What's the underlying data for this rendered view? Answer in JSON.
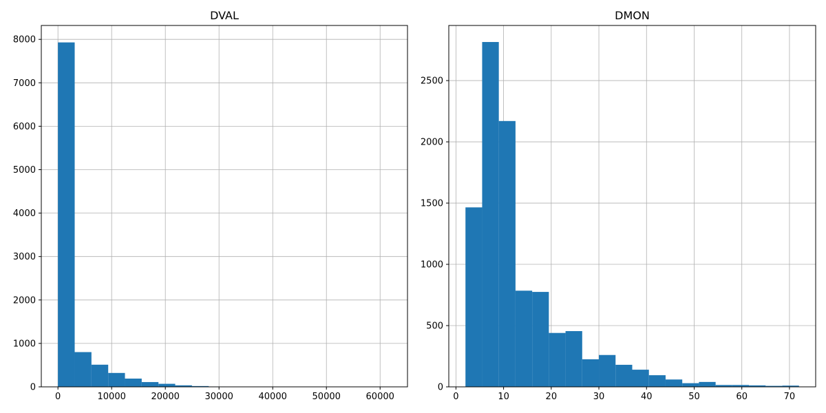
{
  "chart_data": [
    {
      "type": "bar",
      "title": "DVAL",
      "xlabel": "",
      "ylabel": "",
      "grid": true,
      "xlim": [
        -3100,
        65100
      ],
      "ylim": [
        0,
        8320
      ],
      "xticks": [
        0,
        10000,
        20000,
        30000,
        40000,
        50000,
        60000
      ],
      "xtick_labels": [
        "0",
        "10000",
        "20000",
        "30000",
        "40000",
        "50000",
        "60000"
      ],
      "yticks": [
        0,
        1000,
        2000,
        3000,
        4000,
        5000,
        6000,
        7000,
        8000
      ],
      "ytick_labels": [
        "0",
        "1000",
        "2000",
        "3000",
        "4000",
        "5000",
        "6000",
        "7000",
        "8000"
      ],
      "bin_start": 0,
      "bin_width": 3120,
      "values": [
        7930,
        800,
        510,
        320,
        190,
        110,
        70,
        35,
        18,
        8,
        5,
        3,
        2,
        2,
        1,
        1,
        1,
        1,
        1,
        1
      ],
      "color": "#1f77b4"
    },
    {
      "type": "bar",
      "title": "DMON",
      "xlabel": "",
      "ylabel": "",
      "grid": true,
      "xlim": [
        -1.5,
        75.5
      ],
      "ylim": [
        0,
        2950
      ],
      "xticks": [
        0,
        10,
        20,
        30,
        40,
        50,
        60,
        70
      ],
      "xtick_labels": [
        "0",
        "10",
        "20",
        "30",
        "40",
        "50",
        "60",
        "70"
      ],
      "yticks": [
        0,
        500,
        1000,
        1500,
        2000,
        2500
      ],
      "ytick_labels": [
        "0",
        "500",
        "1000",
        "1500",
        "2000",
        "2500"
      ],
      "bin_start": 2,
      "bin_width": 3.5,
      "values": [
        1465,
        2815,
        2170,
        785,
        775,
        440,
        455,
        225,
        260,
        180,
        140,
        95,
        60,
        30,
        40,
        15,
        15,
        12,
        8,
        10
      ],
      "color": "#1f77b4"
    }
  ]
}
